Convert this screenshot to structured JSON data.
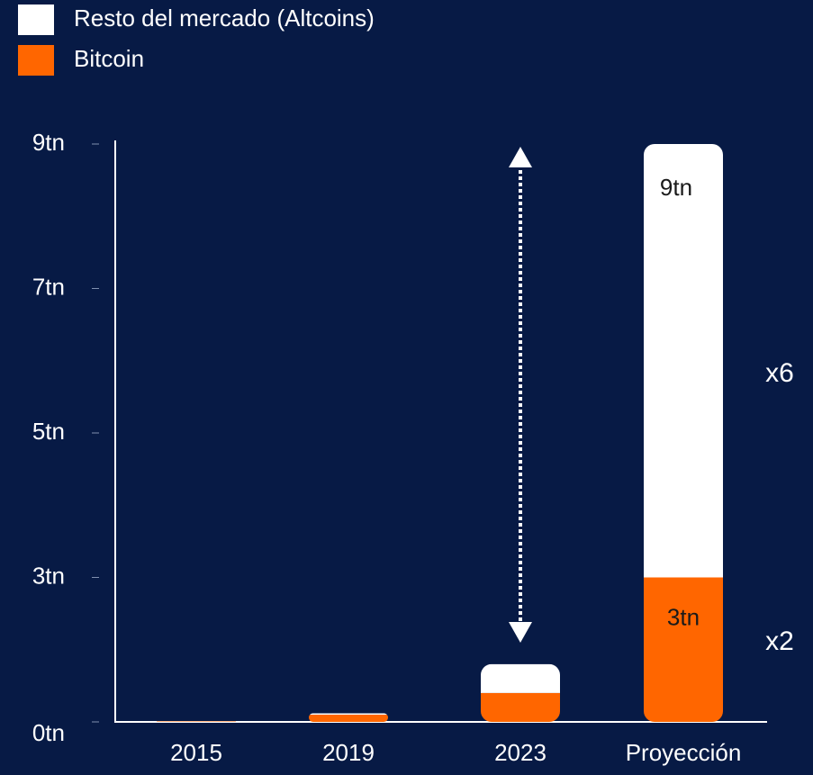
{
  "chart_data": {
    "type": "stacked_bar",
    "categories": [
      "2015",
      "2019",
      "2023",
      "Proyección"
    ],
    "series": [
      {
        "name": "Resto del mercado (Altcoins)",
        "color": "#ffffff",
        "values": [
          0,
          0.03,
          0.6,
          6
        ]
      },
      {
        "name": "Bitcoin",
        "color": "#ff6600",
        "values": [
          0.01,
          0.15,
          0.6,
          3
        ],
        "value_labels": [
          null,
          null,
          null,
          "3tn"
        ]
      }
    ],
    "ylim": [
      0,
      9
    ],
    "yticks": [
      {
        "value": 0,
        "label": "0tn"
      },
      {
        "value": 3,
        "label": "3tn"
      },
      {
        "value": 5,
        "label": "5tn"
      },
      {
        "value": 7,
        "label": "7tn"
      },
      {
        "value": 9,
        "label": "9tn"
      }
    ],
    "annotations": [
      "9tn",
      "x6",
      "x2"
    ],
    "legend": "top-left"
  }
}
